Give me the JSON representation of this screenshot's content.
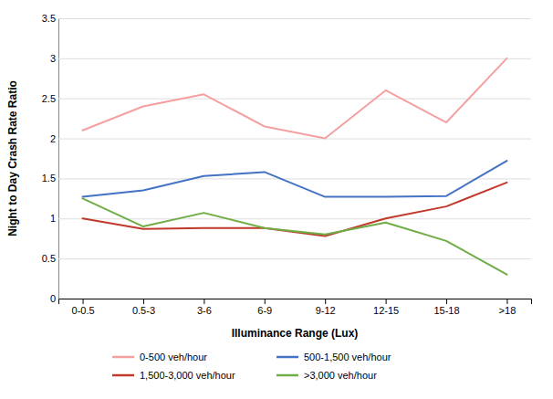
{
  "chart_data": {
    "type": "line",
    "categories": [
      "0-0.5",
      "0.5-3",
      "3-6",
      "6-9",
      "9-12",
      "12-15",
      "15-18",
      ">18"
    ],
    "series": [
      {
        "name": "0-500 veh/hour",
        "color": "#F4A0A0",
        "values": [
          2.1,
          2.4,
          2.55,
          2.15,
          2.0,
          2.6,
          2.2,
          3.0
        ]
      },
      {
        "name": "500-1,500 veh/hour",
        "color": "#4472C4",
        "values": [
          1.27,
          1.35,
          1.53,
          1.58,
          1.27,
          1.27,
          1.28,
          1.72
        ]
      },
      {
        "name": "1,500-3,000 veh/hour",
        "color": "#C0392B",
        "values": [
          1.0,
          0.87,
          0.88,
          0.88,
          0.78,
          1.0,
          1.15,
          1.45
        ]
      },
      {
        "name": ">3,000 veh/hour",
        "color": "#70AD47",
        "values": [
          1.25,
          0.9,
          1.07,
          0.88,
          0.8,
          0.95,
          0.72,
          0.3
        ]
      }
    ],
    "x_label": "Illuminance Range (Lux)",
    "y_label": "Night to Day Crash Rate Ratio",
    "ylim": [
      0,
      3.5
    ],
    "yticks": [
      0,
      0.5,
      1,
      1.5,
      2,
      2.5,
      3,
      3.5
    ],
    "grid": true,
    "legend": "bottom"
  }
}
